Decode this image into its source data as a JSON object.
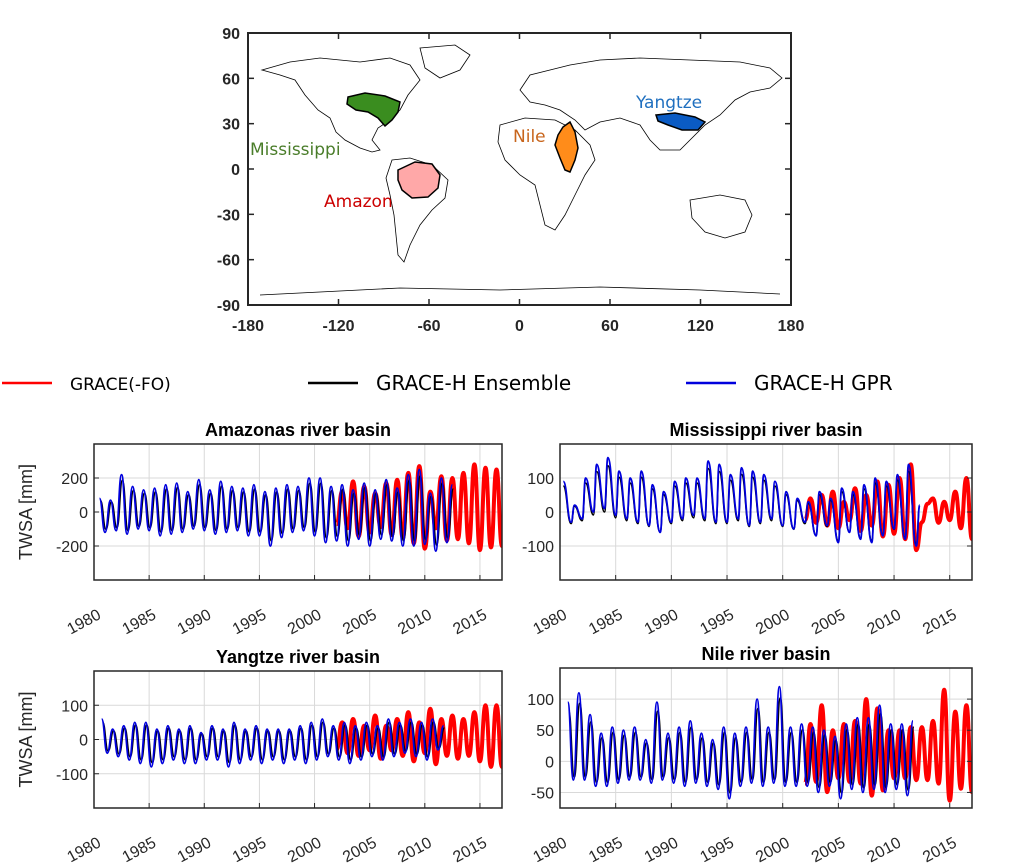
{
  "colors": {
    "grace": "#ff0000",
    "ensemble": "#000000",
    "gpr": "#0000dd",
    "mississippi": "#3a8d1f",
    "amazon": "#ffa8a8",
    "nile": "#ff8c1a",
    "yangtze": "#0a5bc4",
    "mississippi_text": "#4a7d2a",
    "amazon_text": "#cc0000",
    "nile_text": "#c8651c",
    "yangtze_text": "#1f6fbf"
  },
  "map": {
    "x_ticks": [
      "-180",
      "-120",
      "-60",
      "0",
      "60",
      "120",
      "180"
    ],
    "y_ticks": [
      "90",
      "60",
      "30",
      "0",
      "-30",
      "-60",
      "-90"
    ],
    "basins": [
      {
        "key": "mississippi",
        "label": "Mississippi"
      },
      {
        "key": "amazon",
        "label": "Amazon"
      },
      {
        "key": "nile",
        "label": "Nile"
      },
      {
        "key": "yangtze",
        "label": "Yangtze"
      }
    ]
  },
  "legend": {
    "grace": "GRACE(-FO)",
    "ensemble": "GRACE-H Ensemble",
    "gpr": "GRACE-H GPR"
  },
  "chart_data": [
    {
      "type": "line",
      "title": "Amazonas river basin",
      "ylabel": "TWSA [mm]",
      "xlim": [
        1980,
        2017
      ],
      "ylim": [
        -400,
        400
      ],
      "yticks": [
        -200,
        0,
        200
      ],
      "xticks": [
        1980,
        1985,
        1990,
        1995,
        2000,
        2005,
        2010,
        2015
      ],
      "grid": true,
      "series": [
        {
          "key": "gpr",
          "x": [
            1980.5,
            1981.5,
            1982.5,
            1983.5,
            1984.5,
            1985.5,
            1986.5,
            1987.5,
            1988.5,
            1989.5,
            1990.5,
            1991.5,
            1992.5,
            1993.5,
            1994.5,
            1995.5,
            1996.5,
            1997.5,
            1998.5,
            1999.5,
            2000.5,
            2001.5,
            2002.5,
            2003.5,
            2004.5,
            2005.5,
            2006.5,
            2007.5,
            2008.5,
            2009.5,
            2010.5,
            2011.5,
            2012.5
          ],
          "y": [
            80,
            70,
            220,
            150,
            130,
            140,
            160,
            170,
            120,
            190,
            130,
            180,
            150,
            140,
            160,
            120,
            140,
            160,
            150,
            200,
            200,
            150,
            160,
            130,
            170,
            130,
            190,
            140,
            220,
            250,
            110,
            200,
            160
          ]
        },
        {
          "key": "gpr_troughs",
          "x": [
            1981,
            1982,
            1983,
            1984,
            1985,
            1986,
            1987,
            1988,
            1989,
            1990,
            1991,
            1992,
            1993,
            1994,
            1995,
            1996,
            1997,
            1998,
            1999,
            2000,
            2001,
            2002,
            2003,
            2004,
            2005,
            2006,
            2007,
            2008,
            2009,
            2010,
            2011,
            2012
          ],
          "y": [
            -120,
            -110,
            -130,
            -100,
            -110,
            -140,
            -130,
            -120,
            -100,
            -110,
            -130,
            -120,
            -110,
            -140,
            -140,
            -200,
            -150,
            -120,
            -110,
            -140,
            -180,
            -170,
            -200,
            -160,
            -200,
            -160,
            -170,
            -200,
            -200,
            -190,
            -230,
            -180
          ]
        },
        {
          "key": "grace",
          "x": [
            2002.5,
            2003.5,
            2004.5,
            2005.5,
            2006.5,
            2007.5,
            2008.5,
            2009.5,
            2010.5,
            2011.5,
            2012.5,
            2013.5,
            2014.5,
            2015.5,
            2016.5
          ],
          "y": [
            120,
            180,
            150,
            110,
            170,
            190,
            230,
            270,
            120,
            210,
            200,
            230,
            280,
            260,
            250
          ]
        }
      ]
    },
    {
      "type": "line",
      "title": "Mississippi river basin",
      "ylabel": "",
      "xlim": [
        1980,
        2017
      ],
      "ylim": [
        -200,
        200
      ],
      "yticks": [
        -100,
        0,
        100
      ],
      "xticks": [
        1980,
        1985,
        1990,
        1995,
        2000,
        2005,
        2010,
        2015
      ],
      "grid": true,
      "series": [
        {
          "key": "gpr",
          "x": [
            1980.3,
            1981.3,
            1982.3,
            1983.3,
            1984.3,
            1985.3,
            1986.3,
            1987.3,
            1988.3,
            1989.3,
            1990.3,
            1991.3,
            1992.3,
            1993.3,
            1994.3,
            1995.3,
            1996.3,
            1997.3,
            1998.3,
            1999.3,
            2000.3,
            2001.3,
            2002.3,
            2003.3,
            2004.3,
            2005.3,
            2006.3,
            2007.3,
            2008.3,
            2009.3,
            2010.3,
            2011.3,
            2012.3
          ],
          "y": [
            90,
            20,
            100,
            140,
            160,
            120,
            100,
            120,
            80,
            60,
            90,
            100,
            100,
            150,
            140,
            110,
            130,
            120,
            110,
            90,
            60,
            40,
            30,
            60,
            40,
            70,
            60,
            80,
            100,
            90,
            110,
            140,
            20
          ]
        },
        {
          "key": "ensemble",
          "x": [
            1981,
            1982,
            1983,
            1984,
            1985,
            1986,
            1987,
            1988,
            1989,
            1990,
            1991,
            1992,
            1993,
            1994,
            1995,
            1996,
            1997,
            1998,
            1999,
            2000,
            2001,
            2002,
            2003,
            2004,
            2005,
            2006,
            2007,
            2008,
            2009,
            2010,
            2011,
            2012
          ],
          "y": [
            -40,
            -30,
            -10,
            0,
            -20,
            -30,
            -40,
            -50,
            -70,
            -40,
            -30,
            -20,
            -30,
            -40,
            -40,
            -30,
            -50,
            -40,
            -30,
            -50,
            -60,
            -40,
            -80,
            -50,
            -100,
            -70,
            -90,
            -100,
            -80,
            -60,
            -90,
            -110
          ]
        },
        {
          "key": "grace",
          "x": [
            2002.5,
            2003.5,
            2004.5,
            2005.5,
            2006.5,
            2007.5,
            2008.5,
            2009.5,
            2010.5,
            2011.5,
            2012.5,
            2013.5,
            2014.5,
            2015.5,
            2016.5
          ],
          "y": [
            40,
            50,
            60,
            30,
            70,
            50,
            90,
            80,
            100,
            140,
            -30,
            40,
            30,
            60,
            100
          ]
        }
      ]
    },
    {
      "type": "line",
      "title": "Yangtze river basin",
      "ylabel": "TWSA [mm]",
      "xlim": [
        1980,
        2017
      ],
      "ylim": [
        -200,
        200
      ],
      "yticks": [
        -100,
        0,
        100
      ],
      "xticks": [
        1980,
        1985,
        1990,
        1995,
        2000,
        2005,
        2010,
        2015
      ],
      "grid": true,
      "series": [
        {
          "key": "gpr",
          "x": [
            1980.7,
            1981.7,
            1982.7,
            1983.7,
            1984.7,
            1985.7,
            1986.7,
            1987.7,
            1988.7,
            1989.7,
            1990.7,
            1991.7,
            1992.7,
            1993.7,
            1994.7,
            1995.7,
            1996.7,
            1997.7,
            1998.7,
            1999.7,
            2000.7,
            2001.7,
            2002.7,
            2003.7,
            2004.7,
            2005.7,
            2006.7,
            2007.7,
            2008.7,
            2009.7,
            2010.7,
            2011.7
          ],
          "y": [
            60,
            30,
            40,
            50,
            50,
            30,
            40,
            30,
            40,
            20,
            40,
            30,
            50,
            30,
            40,
            30,
            30,
            30,
            40,
            50,
            60,
            40,
            50,
            40,
            50,
            40,
            60,
            50,
            60,
            50,
            60,
            40
          ]
        },
        {
          "key": "gpr_troughs",
          "x": [
            1981.2,
            1982.2,
            1983.2,
            1984.2,
            1985.2,
            1986.2,
            1987.2,
            1988.2,
            1989.2,
            1990.2,
            1991.2,
            1992.2,
            1993.2,
            1994.2,
            1995.2,
            1996.2,
            1997.2,
            1998.2,
            1999.2,
            2000.2,
            2001.2,
            2002.2,
            2003.2,
            2004.2,
            2005.2,
            2006.2,
            2007.2,
            2008.2,
            2009.2,
            2010.2,
            2011.2
          ],
          "y": [
            -40,
            -50,
            -60,
            -70,
            -80,
            -70,
            -60,
            -70,
            -70,
            -60,
            -60,
            -80,
            -70,
            -60,
            -70,
            -60,
            -70,
            -60,
            -70,
            -60,
            -50,
            -60,
            -70,
            -60,
            -50,
            -60,
            -50,
            -40,
            -50,
            -60,
            -30
          ]
        },
        {
          "key": "grace",
          "x": [
            2002.5,
            2003.5,
            2004.5,
            2005.5,
            2006.5,
            2007.5,
            2008.5,
            2009.5,
            2010.5,
            2011.5,
            2012.5,
            2013.5,
            2014.5,
            2015.5,
            2016.5
          ],
          "y": [
            50,
            60,
            40,
            70,
            40,
            60,
            80,
            50,
            90,
            60,
            70,
            60,
            80,
            100,
            100
          ]
        }
      ]
    },
    {
      "type": "line",
      "title": "Nile river basin",
      "ylabel": "",
      "xlim": [
        1980,
        2017
      ],
      "ylim": [
        -75,
        150
      ],
      "yticks": [
        -50,
        0,
        50,
        100
      ],
      "xticks": [
        1980,
        1985,
        1990,
        1995,
        2000,
        2005,
        2010,
        2015
      ],
      "grid": true,
      "series": [
        {
          "key": "gpr",
          "x": [
            1980.7,
            1981.7,
            1982.7,
            1983.7,
            1984.7,
            1985.7,
            1986.7,
            1987.7,
            1988.7,
            1989.7,
            1990.7,
            1991.7,
            1992.7,
            1993.7,
            1994.7,
            1995.7,
            1996.7,
            1997.7,
            1998.7,
            1999.7,
            2000.7,
            2001.7,
            2002.7,
            2003.7,
            2004.7,
            2005.7,
            2006.7,
            2007.7,
            2008.7,
            2009.7,
            2010.7,
            2011.7
          ],
          "y": [
            95,
            110,
            75,
            45,
            55,
            50,
            55,
            35,
            95,
            45,
            55,
            65,
            45,
            35,
            55,
            45,
            55,
            100,
            55,
            120,
            55,
            60,
            55,
            50,
            40,
            60,
            70,
            70,
            90,
            60,
            60,
            65
          ]
        },
        {
          "key": "gpr_troughs",
          "x": [
            1981.2,
            1982.2,
            1983.2,
            1984.2,
            1985.2,
            1986.2,
            1987.2,
            1988.2,
            1989.2,
            1990.2,
            1991.2,
            1992.2,
            1993.2,
            1994.2,
            1995.2,
            1996.2,
            1997.2,
            1998.2,
            1999.2,
            2000.2,
            2001.2,
            2002.2,
            2003.2,
            2004.2,
            2005.2,
            2006.2,
            2007.2,
            2008.2,
            2009.2,
            2010.2,
            2011.2
          ],
          "y": [
            -30,
            -30,
            -40,
            -40,
            -35,
            -30,
            -30,
            -35,
            -30,
            -35,
            -40,
            -35,
            -40,
            -45,
            -60,
            -40,
            -35,
            -40,
            -35,
            -40,
            -40,
            -40,
            -50,
            -40,
            -60,
            -45,
            -50,
            -45,
            -50,
            -45,
            -55
          ]
        },
        {
          "key": "grace",
          "x": [
            2002.5,
            2003.5,
            2004.5,
            2005.5,
            2006.5,
            2007.5,
            2008.5,
            2009.5,
            2010.5,
            2011.5,
            2012.5,
            2013.5,
            2014.5,
            2015.5,
            2016.5
          ],
          "y": [
            60,
            90,
            50,
            60,
            65,
            100,
            85,
            50,
            50,
            55,
            55,
            65,
            115,
            80,
            90
          ]
        }
      ]
    }
  ]
}
